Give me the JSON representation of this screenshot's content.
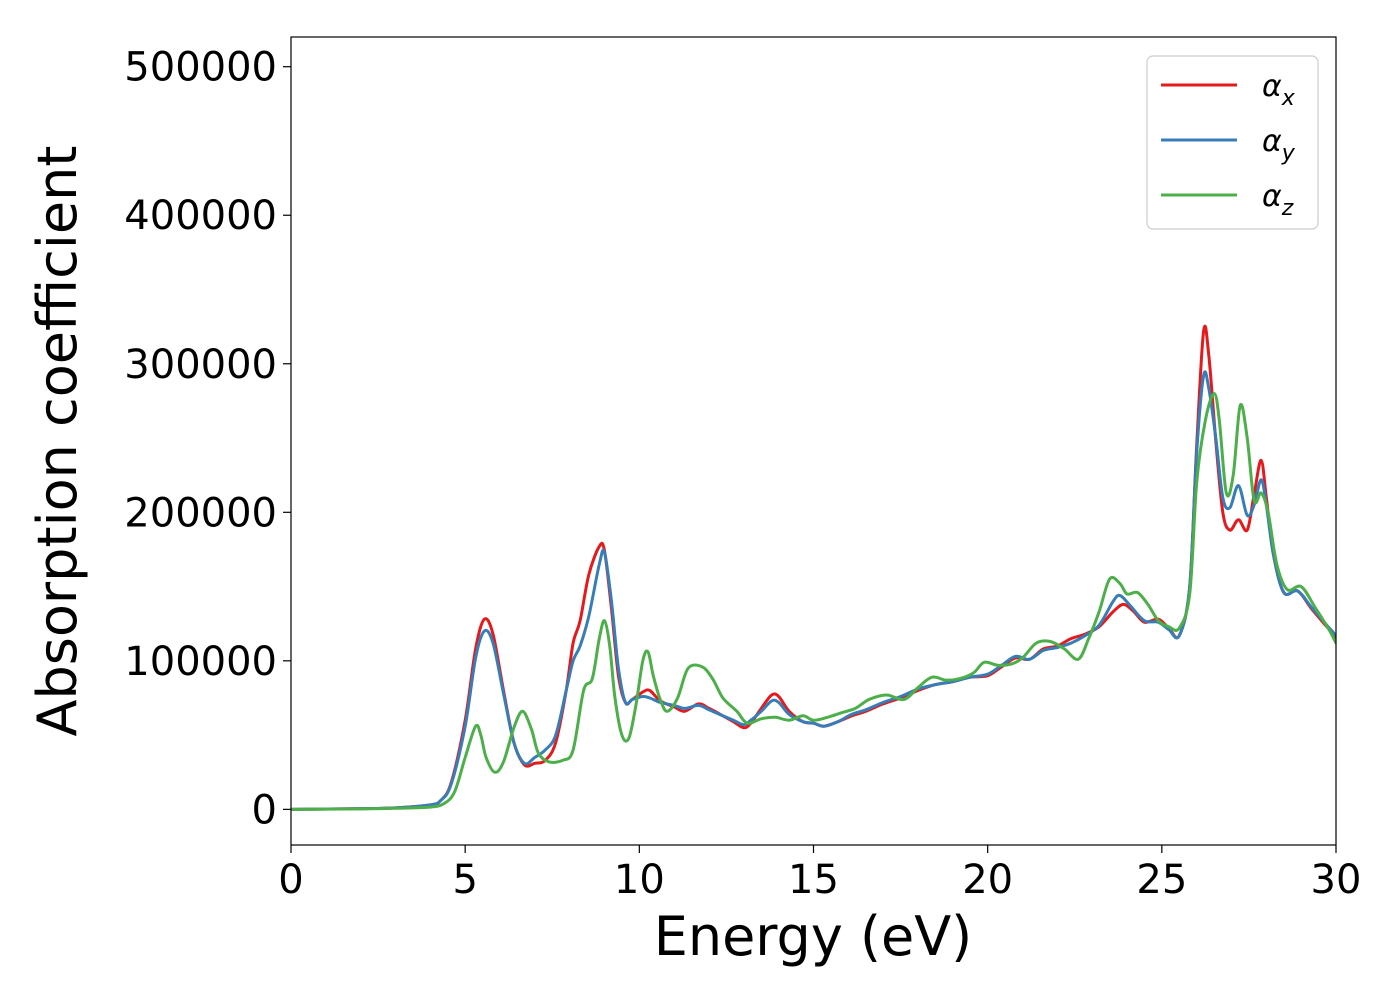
{
  "chart_data": {
    "type": "line",
    "xlabel": "Energy (eV)",
    "ylabel": "Absorption coefficient",
    "xlim": [
      0,
      30
    ],
    "ylim": [
      -24000,
      520000
    ],
    "xticks": [
      0,
      5,
      10,
      15,
      20,
      25,
      30
    ],
    "yticks": [
      0,
      100000,
      200000,
      300000,
      400000,
      500000
    ],
    "grid": false,
    "legend_position": "top-right",
    "series": [
      {
        "name": "αx",
        "name_base": "α",
        "name_sub": "x",
        "color": "#e41a1c",
        "points": [
          [
            0,
            0
          ],
          [
            2,
            500
          ],
          [
            3,
            1000
          ],
          [
            4,
            3000
          ],
          [
            4.3,
            6000
          ],
          [
            4.6,
            18000
          ],
          [
            5.0,
            60000
          ],
          [
            5.3,
            108000
          ],
          [
            5.55,
            128000
          ],
          [
            5.8,
            118000
          ],
          [
            6.1,
            80000
          ],
          [
            6.4,
            45000
          ],
          [
            6.7,
            30000
          ],
          [
            7.0,
            31000
          ],
          [
            7.3,
            33000
          ],
          [
            7.6,
            45000
          ],
          [
            7.9,
            80000
          ],
          [
            8.1,
            112000
          ],
          [
            8.3,
            127000
          ],
          [
            8.55,
            158000
          ],
          [
            8.85,
            177000
          ],
          [
            9.0,
            174000
          ],
          [
            9.2,
            135000
          ],
          [
            9.4,
            90000
          ],
          [
            9.6,
            72000
          ],
          [
            9.8,
            74000
          ],
          [
            10.1,
            79000
          ],
          [
            10.3,
            80000
          ],
          [
            10.6,
            73000
          ],
          [
            11.0,
            69000
          ],
          [
            11.3,
            66000
          ],
          [
            11.7,
            71000
          ],
          [
            12.0,
            68000
          ],
          [
            12.4,
            63000
          ],
          [
            12.7,
            59000
          ],
          [
            13.0,
            55000
          ],
          [
            13.2,
            58000
          ],
          [
            13.5,
            68000
          ],
          [
            13.8,
            77000
          ],
          [
            14.0,
            76000
          ],
          [
            14.3,
            66000
          ],
          [
            14.7,
            59000
          ],
          [
            15.0,
            58000
          ],
          [
            15.3,
            56000
          ],
          [
            15.7,
            59000
          ],
          [
            16.1,
            63000
          ],
          [
            16.5,
            66000
          ],
          [
            17.0,
            71000
          ],
          [
            17.5,
            75000
          ],
          [
            18.0,
            80000
          ],
          [
            18.5,
            84000
          ],
          [
            19.0,
            86000
          ],
          [
            19.5,
            89000
          ],
          [
            20.0,
            90000
          ],
          [
            20.4,
            96000
          ],
          [
            20.8,
            102000
          ],
          [
            21.2,
            101000
          ],
          [
            21.6,
            108000
          ],
          [
            22.0,
            110000
          ],
          [
            22.4,
            115000
          ],
          [
            22.8,
            118000
          ],
          [
            23.2,
            123000
          ],
          [
            23.6,
            133000
          ],
          [
            23.9,
            138000
          ],
          [
            24.2,
            133000
          ],
          [
            24.5,
            126000
          ],
          [
            24.9,
            128000
          ],
          [
            25.2,
            122000
          ],
          [
            25.5,
            117000
          ],
          [
            25.8,
            150000
          ],
          [
            26.0,
            245000
          ],
          [
            26.2,
            322000
          ],
          [
            26.35,
            305000
          ],
          [
            26.55,
            248000
          ],
          [
            26.75,
            200000
          ],
          [
            26.95,
            188000
          ],
          [
            27.2,
            195000
          ],
          [
            27.45,
            188000
          ],
          [
            27.65,
            212000
          ],
          [
            27.85,
            235000
          ],
          [
            28.0,
            210000
          ],
          [
            28.2,
            172000
          ],
          [
            28.5,
            146000
          ],
          [
            28.9,
            147000
          ],
          [
            29.3,
            135000
          ],
          [
            29.7,
            124000
          ],
          [
            30,
            116000
          ]
        ]
      },
      {
        "name": "αy",
        "name_base": "α",
        "name_sub": "y",
        "color": "#377eb8",
        "points": [
          [
            0,
            0
          ],
          [
            2,
            500
          ],
          [
            3,
            1000
          ],
          [
            4,
            3000
          ],
          [
            4.3,
            6000
          ],
          [
            4.6,
            17000
          ],
          [
            5.0,
            56000
          ],
          [
            5.3,
            102000
          ],
          [
            5.55,
            120000
          ],
          [
            5.8,
            112000
          ],
          [
            6.1,
            78000
          ],
          [
            6.4,
            45000
          ],
          [
            6.7,
            31000
          ],
          [
            7.0,
            35000
          ],
          [
            7.3,
            40000
          ],
          [
            7.6,
            50000
          ],
          [
            7.9,
            80000
          ],
          [
            8.1,
            100000
          ],
          [
            8.3,
            110000
          ],
          [
            8.55,
            130000
          ],
          [
            8.85,
            165000
          ],
          [
            9.0,
            173000
          ],
          [
            9.2,
            140000
          ],
          [
            9.4,
            95000
          ],
          [
            9.6,
            72000
          ],
          [
            9.8,
            74000
          ],
          [
            10.1,
            76000
          ],
          [
            10.3,
            75000
          ],
          [
            10.6,
            72000
          ],
          [
            11.0,
            70000
          ],
          [
            11.3,
            68000
          ],
          [
            11.7,
            70000
          ],
          [
            12.0,
            67000
          ],
          [
            12.4,
            63000
          ],
          [
            12.7,
            60000
          ],
          [
            13.0,
            57000
          ],
          [
            13.2,
            60000
          ],
          [
            13.5,
            66000
          ],
          [
            13.8,
            73000
          ],
          [
            14.0,
            72000
          ],
          [
            14.3,
            64000
          ],
          [
            14.7,
            59000
          ],
          [
            15.0,
            58000
          ],
          [
            15.3,
            56000
          ],
          [
            15.7,
            59000
          ],
          [
            16.1,
            64000
          ],
          [
            16.5,
            67000
          ],
          [
            17.0,
            72000
          ],
          [
            17.5,
            76000
          ],
          [
            18.0,
            81000
          ],
          [
            18.5,
            84000
          ],
          [
            19.0,
            86000
          ],
          [
            19.5,
            89000
          ],
          [
            20.0,
            91000
          ],
          [
            20.4,
            97000
          ],
          [
            20.8,
            103000
          ],
          [
            21.2,
            101000
          ],
          [
            21.6,
            107000
          ],
          [
            22.0,
            109000
          ],
          [
            22.4,
            112000
          ],
          [
            22.8,
            117000
          ],
          [
            23.2,
            124000
          ],
          [
            23.6,
            140000
          ],
          [
            23.8,
            144000
          ],
          [
            24.1,
            137000
          ],
          [
            24.5,
            127000
          ],
          [
            24.9,
            126000
          ],
          [
            25.2,
            121000
          ],
          [
            25.5,
            117000
          ],
          [
            25.8,
            150000
          ],
          [
            26.0,
            240000
          ],
          [
            26.2,
            292000
          ],
          [
            26.35,
            283000
          ],
          [
            26.55,
            250000
          ],
          [
            26.75,
            210000
          ],
          [
            26.95,
            203000
          ],
          [
            27.2,
            218000
          ],
          [
            27.45,
            198000
          ],
          [
            27.65,
            205000
          ],
          [
            27.85,
            222000
          ],
          [
            28.0,
            205000
          ],
          [
            28.2,
            172000
          ],
          [
            28.5,
            146000
          ],
          [
            28.9,
            147000
          ],
          [
            29.3,
            136000
          ],
          [
            29.7,
            125000
          ],
          [
            30,
            117000
          ]
        ]
      },
      {
        "name": "αz",
        "name_base": "α",
        "name_sub": "z",
        "color": "#4daf4a",
        "points": [
          [
            0,
            0
          ],
          [
            2,
            300
          ],
          [
            3,
            700
          ],
          [
            4,
            1500
          ],
          [
            4.4,
            4000
          ],
          [
            4.7,
            12000
          ],
          [
            5.0,
            35000
          ],
          [
            5.3,
            56000
          ],
          [
            5.45,
            50000
          ],
          [
            5.6,
            35000
          ],
          [
            5.85,
            25000
          ],
          [
            6.1,
            32000
          ],
          [
            6.4,
            55000
          ],
          [
            6.65,
            66000
          ],
          [
            6.9,
            54000
          ],
          [
            7.1,
            38000
          ],
          [
            7.4,
            32000
          ],
          [
            7.8,
            33000
          ],
          [
            8.1,
            40000
          ],
          [
            8.4,
            80000
          ],
          [
            8.65,
            88000
          ],
          [
            8.85,
            115000
          ],
          [
            9.0,
            127000
          ],
          [
            9.15,
            110000
          ],
          [
            9.3,
            75000
          ],
          [
            9.5,
            50000
          ],
          [
            9.7,
            48000
          ],
          [
            9.9,
            70000
          ],
          [
            10.1,
            100000
          ],
          [
            10.25,
            106000
          ],
          [
            10.4,
            90000
          ],
          [
            10.6,
            74000
          ],
          [
            10.8,
            66000
          ],
          [
            11.1,
            75000
          ],
          [
            11.4,
            95000
          ],
          [
            11.8,
            96000
          ],
          [
            12.1,
            88000
          ],
          [
            12.4,
            75000
          ],
          [
            12.8,
            66000
          ],
          [
            13.1,
            58000
          ],
          [
            13.5,
            61000
          ],
          [
            13.9,
            62000
          ],
          [
            14.3,
            60000
          ],
          [
            14.7,
            63000
          ],
          [
            15.0,
            60000
          ],
          [
            15.4,
            62000
          ],
          [
            15.8,
            65000
          ],
          [
            16.2,
            68000
          ],
          [
            16.6,
            74000
          ],
          [
            17.1,
            77000
          ],
          [
            17.6,
            74000
          ],
          [
            18.0,
            82000
          ],
          [
            18.4,
            89000
          ],
          [
            18.8,
            87000
          ],
          [
            19.2,
            88000
          ],
          [
            19.6,
            92000
          ],
          [
            19.9,
            99000
          ],
          [
            20.3,
            97000
          ],
          [
            20.7,
            98000
          ],
          [
            21.0,
            102000
          ],
          [
            21.4,
            112000
          ],
          [
            21.8,
            113000
          ],
          [
            22.2,
            108000
          ],
          [
            22.6,
            101000
          ],
          [
            22.9,
            115000
          ],
          [
            23.2,
            133000
          ],
          [
            23.5,
            155000
          ],
          [
            23.8,
            152000
          ],
          [
            24.0,
            145000
          ],
          [
            24.3,
            146000
          ],
          [
            24.6,
            138000
          ],
          [
            24.9,
            127000
          ],
          [
            25.2,
            123000
          ],
          [
            25.5,
            122000
          ],
          [
            25.8,
            145000
          ],
          [
            26.0,
            220000
          ],
          [
            26.25,
            262000
          ],
          [
            26.5,
            280000
          ],
          [
            26.65,
            262000
          ],
          [
            26.85,
            213000
          ],
          [
            27.05,
            225000
          ],
          [
            27.25,
            272000
          ],
          [
            27.45,
            250000
          ],
          [
            27.65,
            208000
          ],
          [
            27.85,
            213000
          ],
          [
            28.05,
            200000
          ],
          [
            28.3,
            165000
          ],
          [
            28.6,
            148000
          ],
          [
            29.0,
            150000
          ],
          [
            29.4,
            136000
          ],
          [
            29.8,
            121000
          ],
          [
            30,
            112000
          ]
        ]
      }
    ]
  }
}
